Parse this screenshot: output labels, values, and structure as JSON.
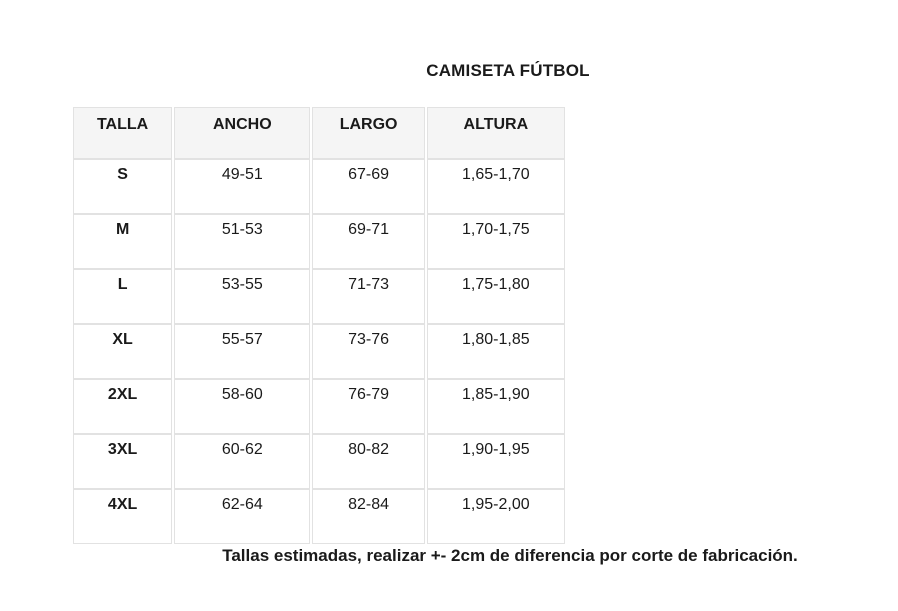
{
  "page": {
    "title": "CAMISETA FÚTBOL",
    "footer_note": "Tallas estimadas, realizar +- 2cm de diferencia por corte de fabricación."
  },
  "size_table": {
    "columns": [
      "TALLA",
      "ANCHO",
      "LARGO",
      "ALTURA"
    ],
    "rows": [
      [
        "S",
        "49-51",
        "67-69",
        "1,65-1,70"
      ],
      [
        "M",
        "51-53",
        "69-71",
        "1,70-1,75"
      ],
      [
        "L",
        "53-55",
        "71-73",
        "1,75-1,80"
      ],
      [
        "XL",
        "55-57",
        "73-76",
        "1,80-1,85"
      ],
      [
        "2XL",
        "58-60",
        "76-79",
        "1,85-1,90"
      ],
      [
        "3XL",
        "60-62",
        "80-82",
        "1,90-1,95"
      ],
      [
        "4XL",
        "62-64",
        "82-84",
        "1,95-2,00"
      ]
    ]
  },
  "colors": {
    "background": "#ffffff",
    "header_bg": "#f5f5f5",
    "border": "#e2e2e2",
    "text": "#1a1a1a"
  }
}
